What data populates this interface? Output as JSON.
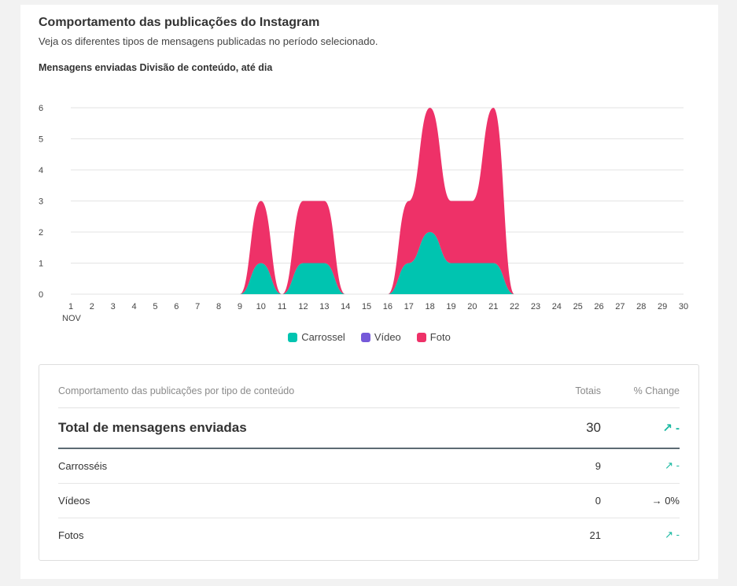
{
  "card": {
    "title": "Comportamento das publicações do Instagram",
    "subtitle": "Veja os diferentes tipos de mensagens publicadas no período selecionado.",
    "chart_heading": "Mensagens enviadas Divisão de conteúdo, até dia"
  },
  "chart_data": {
    "type": "area",
    "stacked": true,
    "title": "",
    "xlabel": "",
    "ylabel": "",
    "x": [
      1,
      2,
      3,
      4,
      5,
      6,
      7,
      8,
      9,
      10,
      11,
      12,
      13,
      14,
      15,
      16,
      17,
      18,
      19,
      20,
      21,
      22,
      23,
      24,
      25,
      26,
      27,
      28,
      29,
      30
    ],
    "x_month_label": "NOV",
    "ylim": [
      0,
      6
    ],
    "yticks": [
      0,
      1,
      2,
      3,
      4,
      5,
      6
    ],
    "grid": true,
    "legend_position": "bottom-center",
    "series": [
      {
        "name": "Carrossel",
        "color": "#00c4b0",
        "values": [
          0,
          0,
          0,
          0,
          0,
          0,
          0,
          0,
          0,
          1,
          0,
          1,
          1,
          0,
          0,
          0,
          1,
          2,
          1,
          1,
          1,
          0,
          0,
          0,
          0,
          0,
          0,
          0,
          0,
          0
        ]
      },
      {
        "name": "Vídeo",
        "color": "#7559d9",
        "values": [
          0,
          0,
          0,
          0,
          0,
          0,
          0,
          0,
          0,
          0,
          0,
          0,
          0,
          0,
          0,
          0,
          0,
          0,
          0,
          0,
          0,
          0,
          0,
          0,
          0,
          0,
          0,
          0,
          0,
          0
        ]
      },
      {
        "name": "Foto",
        "color": "#ee3168",
        "values": [
          0,
          0,
          0,
          0,
          0,
          0,
          0,
          0,
          0,
          2,
          0,
          2,
          2,
          0,
          0,
          0,
          2,
          4,
          2,
          2,
          5,
          0,
          0,
          0,
          0,
          0,
          0,
          0,
          0,
          0
        ]
      }
    ]
  },
  "table": {
    "header": {
      "label": "Comportamento das publicações por tipo de conteúdo",
      "totals": "Totais",
      "change": "% Change"
    },
    "total_row": {
      "label": "Total de mensagens enviadas",
      "total": "30",
      "change": "↗ -"
    },
    "rows": [
      {
        "label": "Carrosséis",
        "total": "9",
        "change": "↗ -"
      },
      {
        "label": "Vídeos",
        "total": "0",
        "change": "→ 0%"
      },
      {
        "label": "Fotos",
        "total": "21",
        "change": "↗ -"
      }
    ]
  }
}
